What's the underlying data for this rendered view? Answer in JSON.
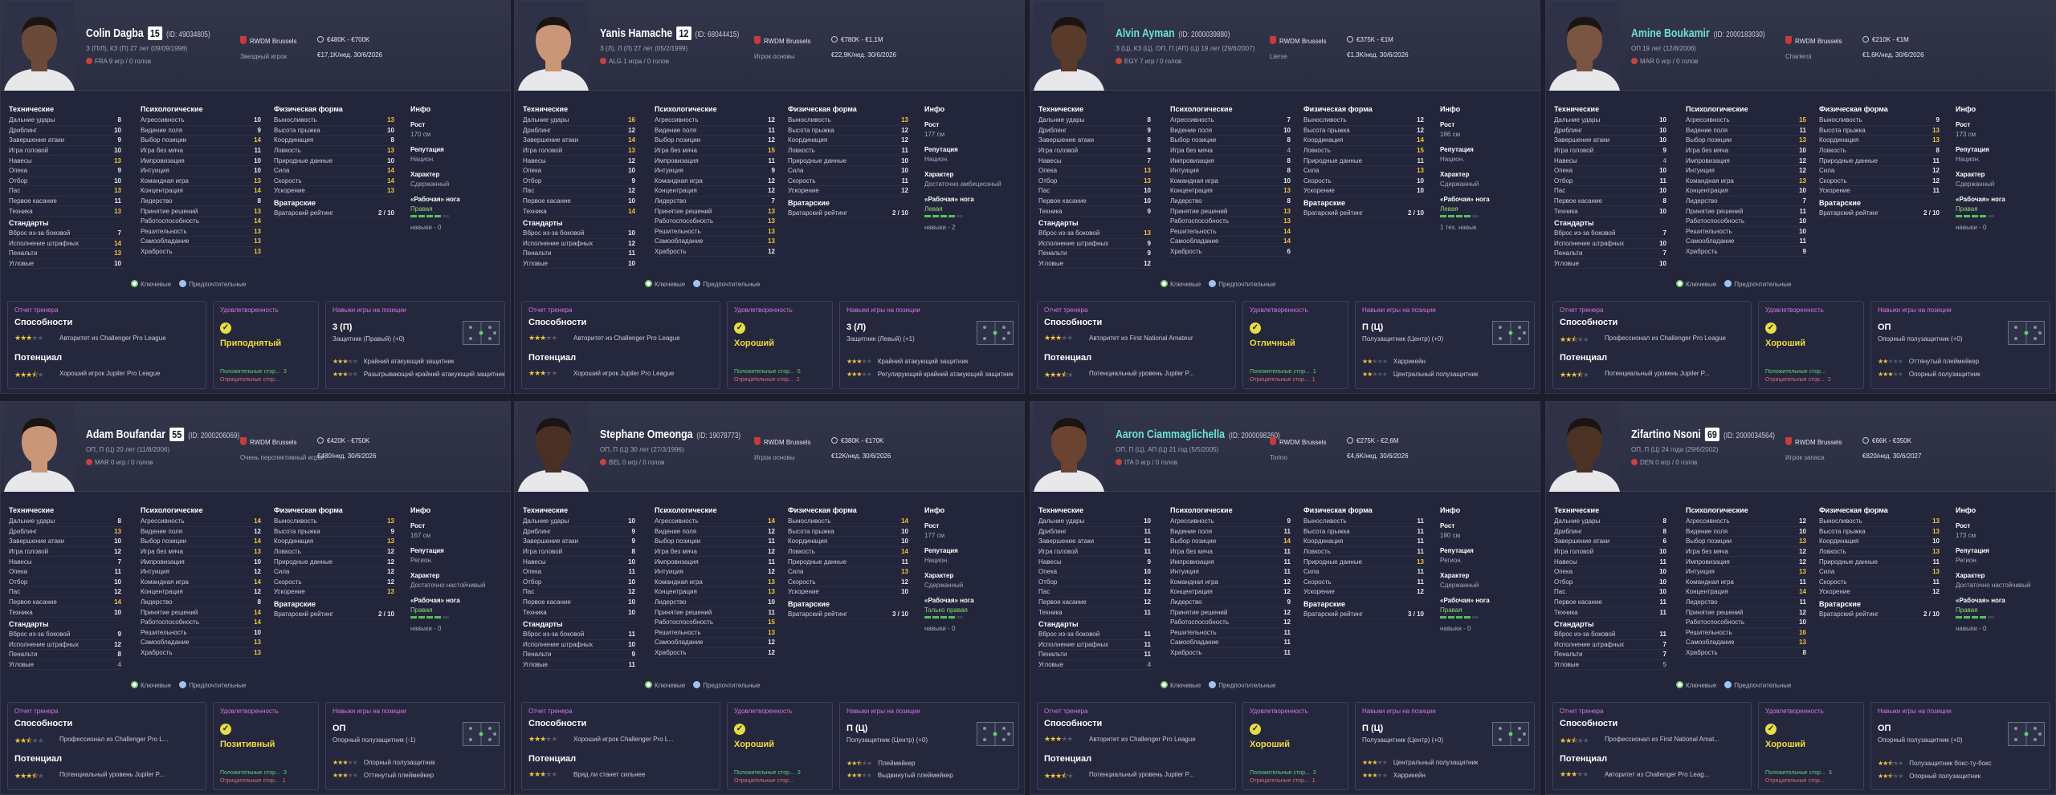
{
  "ui": {
    "tech": "Технические",
    "mental": "Психологические",
    "phys": "Физическая форма",
    "info": "Инфо",
    "set_pieces": "Стандарты",
    "gk": "Вратарские",
    "gk_rating": "Вратарский рейтинг",
    "tech_names": [
      "Дальние удары",
      "Дриблинг",
      "Завершение атаки",
      "Игра головой",
      "Навесы",
      "Опека",
      "Отбор",
      "Пас",
      "Первое касание",
      "Техника"
    ],
    "set_names": [
      "Вброс из-за боковой",
      "Исполнение штрафных",
      "Пенальти",
      "Угловые"
    ],
    "mental_names": [
      "Агрессивность",
      "Видение поля",
      "Выбор позиции",
      "Игра без мяча",
      "Импровизация",
      "Интуиция",
      "Командная игра",
      "Концентрация",
      "Лидерство",
      "Принятие решений",
      "Работоспособность",
      "Решительность",
      "Самообладание",
      "Храбрость"
    ],
    "phys_names": [
      "Выносливость",
      "Высота прыжка",
      "Координация",
      "Ловкость",
      "Природные данные",
      "Сила",
      "Скорость",
      "Ускорение"
    ],
    "height": "Рост",
    "reputation": "Репутация",
    "character": "Характер",
    "foot": "«Рабочая» нога",
    "key": "Ключевые",
    "preferred": "Предпочтительные",
    "coach_report": "Отчет тренера",
    "abilities": "Способности",
    "potential": "Потенциал",
    "morale": "Удовлетворенность",
    "pos_skills": "Навыки игры на позиции",
    "plus": "Положительные стор...",
    "minus": "Отрицательные стор..."
  },
  "players": [
    {
      "name": "Colin Dagba",
      "number": "15",
      "id": "(ID: 49034805)",
      "teal": false,
      "line1": "З (П/Л), КЗ (П)   27 лет (09/09/1998)",
      "line2": "FRA   9 игр / 0 голов",
      "club": "RWDM Brussels",
      "club_sub": "Звездный игрок",
      "value": "€480K - €700K",
      "wage": "€17,1K/нед.  30/6/2026",
      "tech": [
        8,
        10,
        9,
        10,
        13,
        9,
        10,
        13,
        11,
        13
      ],
      "set": [
        7,
        14,
        13,
        10
      ],
      "mental": [
        10,
        9,
        14,
        11,
        10,
        10,
        13,
        14,
        8,
        13,
        14,
        13,
        13,
        13
      ],
      "phys": [
        13,
        10,
        8,
        13,
        10,
        14,
        14,
        13
      ],
      "gk_value": "2 / 10",
      "height": "170 см",
      "reputation": "Национ.",
      "character": "Сдержанный",
      "foot": "Правая",
      "foot_bars": 4,
      "extra": "навыки - 0",
      "coach_stars": [
        3,
        3.5
      ],
      "ability_note": "Авторитет из Challenger Pro League",
      "potential_note": "Хороший игрок Jupiler Pro League",
      "morale": "Приподнятый",
      "plus_n": "3",
      "minus_n": "",
      "pos_role": "3 (П)",
      "pos_sub": "Защитник (Правый) (+0)",
      "pos_lines": [
        [
          "3",
          "Крайний атакующий защитник"
        ],
        [
          "3",
          "Разыгрывающий крайний атакующий защитник"
        ]
      ]
    },
    {
      "name": "Yanis Hamache",
      "number": "12",
      "id": "(ID: 68044415)",
      "teal": false,
      "line1": "З (Л), Л (Л)   27 лет (05/2/1999)",
      "line2": "ALG   1 игра / 0 голов",
      "club": "RWDM Brussels",
      "club_sub": "Игрок основы",
      "value": "€780K - €1,1M",
      "wage": "€22,9K/нед.  30/6/2026",
      "tech": [
        16,
        12,
        14,
        13,
        12,
        10,
        9,
        12,
        10,
        14
      ],
      "set": [
        10,
        12,
        11,
        10
      ],
      "mental": [
        12,
        11,
        12,
        15,
        11,
        9,
        12,
        12,
        7,
        13,
        13,
        13,
        13,
        12
      ],
      "phys": [
        13,
        12,
        12,
        11,
        10,
        10,
        11,
        12
      ],
      "gk_value": "2 / 10",
      "height": "177 см",
      "reputation": "Национ.",
      "character": "Достаточно амбициозный",
      "foot": "Левая",
      "foot_bars": 4,
      "extra": "навыки - 2",
      "coach_stars": [
        3,
        3
      ],
      "ability_note": "Авторитет из Challenger Pro League",
      "potential_note": "Хороший игрок Jupiler Pro League",
      "morale": "Хороший",
      "plus_n": "5",
      "minus_n": "2",
      "pos_role": "3 (Л)",
      "pos_sub": "Защитник (Левый) (+1)",
      "pos_lines": [
        [
          "3",
          "Крайний атакующий защитник"
        ],
        [
          "3",
          "Регулирующий крайний атакующий защитник"
        ]
      ]
    },
    {
      "name": "Alvin Ayman",
      "number": "",
      "id": "(ID: 2000039880)",
      "teal": true,
      "line1": "З (Ц), КЗ (Ц), ОП, П (АП) (Ц)   19 лет (29/6/2007)",
      "line2": "EGY   7 игр / 0 голов",
      "club": "RWDM Brussels",
      "club_sub": "Lierse",
      "value": "€375K - €1M",
      "wage": "€1,3K/нед.  30/6/2026",
      "tech": [
        8,
        9,
        8,
        8,
        7,
        13,
        13,
        10,
        10,
        9
      ],
      "set": [
        13,
        9,
        9,
        12
      ],
      "mental": [
        7,
        10,
        8,
        4,
        8,
        8,
        10,
        13,
        8,
        13,
        13,
        14,
        14,
        6
      ],
      "phys": [
        12,
        12,
        14,
        15,
        11,
        13,
        10,
        10
      ],
      "gk_value": "2 / 10",
      "height": "186 см",
      "reputation": "Национ.",
      "character": "Сдержанный",
      "foot": "Левая",
      "foot_bars": 4,
      "extra": "1 тех. навык",
      "coach_stars": [
        3,
        3.5
      ],
      "ability_note": "Авторитет из First National Amateur",
      "potential_note": "Потенциальный уровень Jupiler P...",
      "morale": "Отличный",
      "plus_n": "1",
      "minus_n": "1",
      "pos_role": "П (Ц)",
      "pos_sub": "Полузащитник (Центр) (+0)",
      "pos_lines": [
        [
          "2",
          "Харрикейн"
        ],
        [
          "2",
          "Центральный полузащитник"
        ]
      ]
    },
    {
      "name": "Amine Boukamir",
      "number": "",
      "id": "(ID: 2000183030)",
      "teal": true,
      "line1": "ОП   19 лет (12/8/2006)",
      "line2": "MAR   0 игр / 0 голов",
      "club": "RWDM Brussels",
      "club_sub": "Charleroi",
      "value": "€210K - €1M",
      "wage": "€1,6K/нед.  30/6/2026",
      "tech": [
        10,
        10,
        10,
        9,
        4,
        10,
        11,
        10,
        8,
        10
      ],
      "set": [
        7,
        10,
        7,
        10
      ],
      "mental": [
        15,
        11,
        13,
        10,
        12,
        12,
        13,
        10,
        7,
        11,
        10,
        10,
        11,
        9
      ],
      "phys": [
        9,
        13,
        13,
        8,
        11,
        12,
        12,
        11
      ],
      "gk_value": "2 / 10",
      "height": "173 см",
      "reputation": "Национ.",
      "character": "Сдержанный",
      "foot": "Правая",
      "foot_bars": 4,
      "extra": "навыки - 0",
      "coach_stars": [
        2.5,
        3.5
      ],
      "ability_note": "Профессионал из Challenger Pro League",
      "potential_note": "Потенциальный уровень Jupiler P...",
      "morale": "Хороший",
      "plus_n": "",
      "minus_n": "2",
      "pos_role": "ОП",
      "pos_sub": "Опорный полузащитник (+0)",
      "pos_lines": [
        [
          "2",
          "Оттянутый плеймейкер"
        ],
        [
          "3",
          "Опорный полузащитник"
        ]
      ]
    },
    {
      "name": "Adam Boufandar",
      "number": "55",
      "id": "(ID: 2000206069)",
      "teal": false,
      "line1": "ОП, П (Ц)   20 лет (11/8/2006)",
      "line2": "MAR   0 игр / 0 голов",
      "club": "RWDM Brussels",
      "club_sub": "Очень перспективный игрок",
      "value": "€420K - €750K",
      "wage": "€480/нед.  30/6/2026",
      "tech": [
        8,
        13,
        10,
        12,
        7,
        11,
        10,
        12,
        14,
        10
      ],
      "set": [
        9,
        12,
        8,
        4
      ],
      "mental": [
        14,
        12,
        14,
        13,
        10,
        12,
        14,
        12,
        8,
        14,
        14,
        10,
        13,
        13
      ],
      "phys": [
        13,
        9,
        13,
        12,
        12,
        12,
        12,
        13
      ],
      "gk_value": "2 / 10",
      "height": "167 см",
      "reputation": "Регион.",
      "character": "Достаточно настойчивый",
      "foot": "Правая",
      "foot_bars": 4,
      "extra": "навыки - 0",
      "coach_stars": [
        2.5,
        3.5
      ],
      "ability_note": "Профессионал из Challenger Pro L...",
      "potential_note": "Потенциальный уровень Jupiler P...",
      "morale": "Позитивный",
      "plus_n": "3",
      "minus_n": "1",
      "pos_role": "ОП",
      "pos_sub": "Опорный полузащитник (-1)",
      "pos_lines": [
        [
          "3",
          "Опорный полузащитник"
        ],
        [
          "3",
          "Оттянутый плеймейкер"
        ]
      ]
    },
    {
      "name": "Stephane Omeonga",
      "number": "",
      "id": "(ID: 19078773)",
      "teal": false,
      "line1": "ОП, П (Ц)   30 лет (27/3/1996)",
      "line2": "BEL   0 игр / 0 голов",
      "club": "RWDM Brussels",
      "club_sub": "Игрок основы",
      "value": "€380K - €170K",
      "wage": "€12K/нед.  30/6/2026",
      "tech": [
        10,
        9,
        9,
        8,
        10,
        11,
        10,
        12,
        10,
        10
      ],
      "set": [
        11,
        10,
        9,
        11
      ],
      "mental": [
        14,
        12,
        11,
        12,
        11,
        12,
        13,
        13,
        10,
        11,
        15,
        13,
        12,
        12
      ],
      "phys": [
        14,
        10,
        10,
        14,
        11,
        13,
        12,
        10
      ],
      "gk_value": "3 / 10",
      "height": "177 см",
      "reputation": "Национ.",
      "character": "Сдержанный",
      "foot": "Только правая",
      "foot_bars": 4,
      "extra": "навыки - 0",
      "coach_stars": [
        3,
        3
      ],
      "ability_note": "Хороший игрок Challenger Pro L...",
      "potential_note": "Вряд ли станет сильнее",
      "morale": "Хороший",
      "plus_n": "3",
      "minus_n": "",
      "pos_role": "П (Ц)",
      "pos_sub": "Полузащитник (Центр) (+0)",
      "pos_lines": [
        [
          "2.5",
          "Плеймейкер"
        ],
        [
          "3",
          "Выдвинутый плеймейкер"
        ]
      ]
    },
    {
      "name": "Aaron Ciammaglichella",
      "number": "",
      "id": "(ID: 2000098260)",
      "teal": true,
      "line1": "ОП, П (Ц), АП (Ц)   21 год (5/5/2005)",
      "line2": "ITA   0 игр / 0 голов",
      "club": "RWDM Brussels",
      "club_sub": "Torino",
      "value": "€275K - €2,6M",
      "wage": "€4,6K/нед.  30/6/2026",
      "tech": [
        10,
        11,
        11,
        11,
        9,
        10,
        12,
        12,
        12,
        11
      ],
      "set": [
        11,
        11,
        11,
        4
      ],
      "mental": [
        9,
        11,
        14,
        11,
        11,
        11,
        12,
        12,
        9,
        12,
        12,
        11,
        11,
        11
      ],
      "phys": [
        11,
        11,
        11,
        11,
        13,
        11,
        11,
        12
      ],
      "gk_value": "3 / 10",
      "height": "180 см",
      "reputation": "Регион.",
      "character": "Сдержанный",
      "foot": "Правая",
      "foot_bars": 4,
      "extra": "навыки - 0",
      "coach_stars": [
        3,
        3.5
      ],
      "ability_note": "Авторитет из Challenger Pro League",
      "potential_note": "Потенциальный уровень Jupiler P...",
      "morale": "Хороший",
      "plus_n": "2",
      "minus_n": "1",
      "pos_role": "П (Ц)",
      "pos_sub": "Полузащитник (Центр) (+0)",
      "pos_lines": [
        [
          "3",
          "Центральный полузащитник"
        ],
        [
          "3",
          "Харрикейн"
        ]
      ]
    },
    {
      "name": "Zifartino Nsoni",
      "number": "69",
      "id": "(ID: 2000034564)",
      "teal": false,
      "line1": "ОП, П (Ц)   24 года (29/6/2002)",
      "line2": "DEN   0 игр / 0 голов",
      "club": "RWDM Brussels",
      "club_sub": "Игрок запаса",
      "value": "€66K - €350K",
      "wage": "€820/нед.  30/6/2027",
      "tech": [
        8,
        8,
        6,
        10,
        11,
        10,
        10,
        10,
        11,
        11
      ],
      "set": [
        11,
        7,
        7,
        5
      ],
      "mental": [
        12,
        10,
        13,
        12,
        12,
        13,
        11,
        14,
        11,
        12,
        10,
        16,
        13,
        8
      ],
      "phys": [
        13,
        13,
        10,
        13,
        11,
        13,
        11,
        12
      ],
      "gk_value": "2 / 10",
      "height": "173 см",
      "reputation": "Регион.",
      "character": "Достаточно настойчивый",
      "foot": "Правая",
      "foot_bars": 4,
      "extra": "навыки - 0",
      "coach_stars": [
        2.5,
        3
      ],
      "ability_note": "Профессионал из First National Amat...",
      "potential_note": "Авторитет из Challenger Pro Leag...",
      "morale": "Хороший",
      "plus_n": "3",
      "minus_n": "",
      "pos_role": "ОП",
      "pos_sub": "Опорный полузащитник (+0)",
      "pos_lines": [
        [
          "2.5",
          "Полузащитник бокс-ту-бокс"
        ],
        [
          "2.5",
          "Опорный полузащитник"
        ]
      ]
    }
  ],
  "colors": {
    "accent_purple": "#d572e6",
    "star": "#f0c43e",
    "positive": "#63cf76",
    "negative": "#e3697c",
    "foot": "#55c05a"
  }
}
